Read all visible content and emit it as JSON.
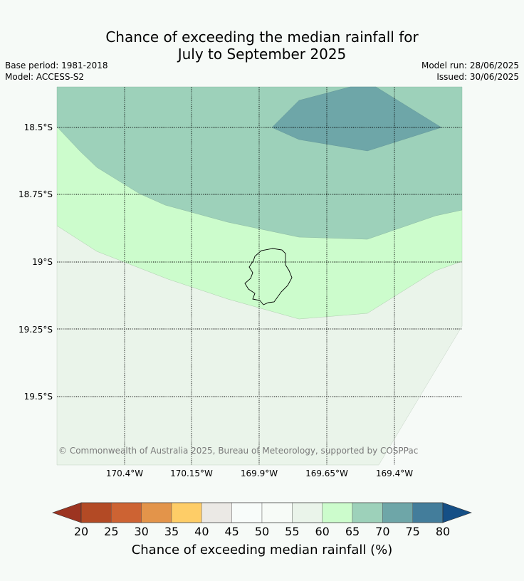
{
  "title_line1": "Chance of exceeding the median rainfall for",
  "title_line2": "July to September 2025",
  "base_period": "Base period: 1981-2018",
  "model": "Model: ACCESS-S2",
  "model_run": "Model run: 28/06/2025",
  "issued": "Issued: 30/06/2025",
  "copyright": "© Commonwealth of Australia 2025, Bureau of Meteorology, supported by COSPPac",
  "lat_labels": [
    "18.5°S",
    "18.75°S",
    "19°S",
    "19.25°S",
    "19.5°S"
  ],
  "lon_labels": [
    "170.4°W",
    "170.15°W",
    "169.9°W",
    "169.65°W",
    "169.4°W"
  ],
  "colorbar": {
    "label": "Chance of exceeding median rainfall (%)",
    "ticks": [
      "20",
      "25",
      "30",
      "35",
      "40",
      "45",
      "50",
      "55",
      "60",
      "65",
      "70",
      "75",
      "80"
    ],
    "colors": [
      "#b34a25",
      "#cd6333",
      "#e3944a",
      "#fecd67",
      "#ebe9e5",
      "#f8fcfa",
      "#f7fbf7",
      "#eaf4ea",
      "#ccfccc",
      "#9dd1ba",
      "#6ea6a8",
      "#437d9b"
    ],
    "under_color": "#9c3421",
    "over_color": "#154f86"
  },
  "map_colors": {
    "class_55_60": "#eaf4ea",
    "class_60_65": "#ccfccc",
    "class_65_70": "#9dd1ba",
    "class_70_75": "#6ea6a8",
    "background": "#f6faf7"
  }
}
